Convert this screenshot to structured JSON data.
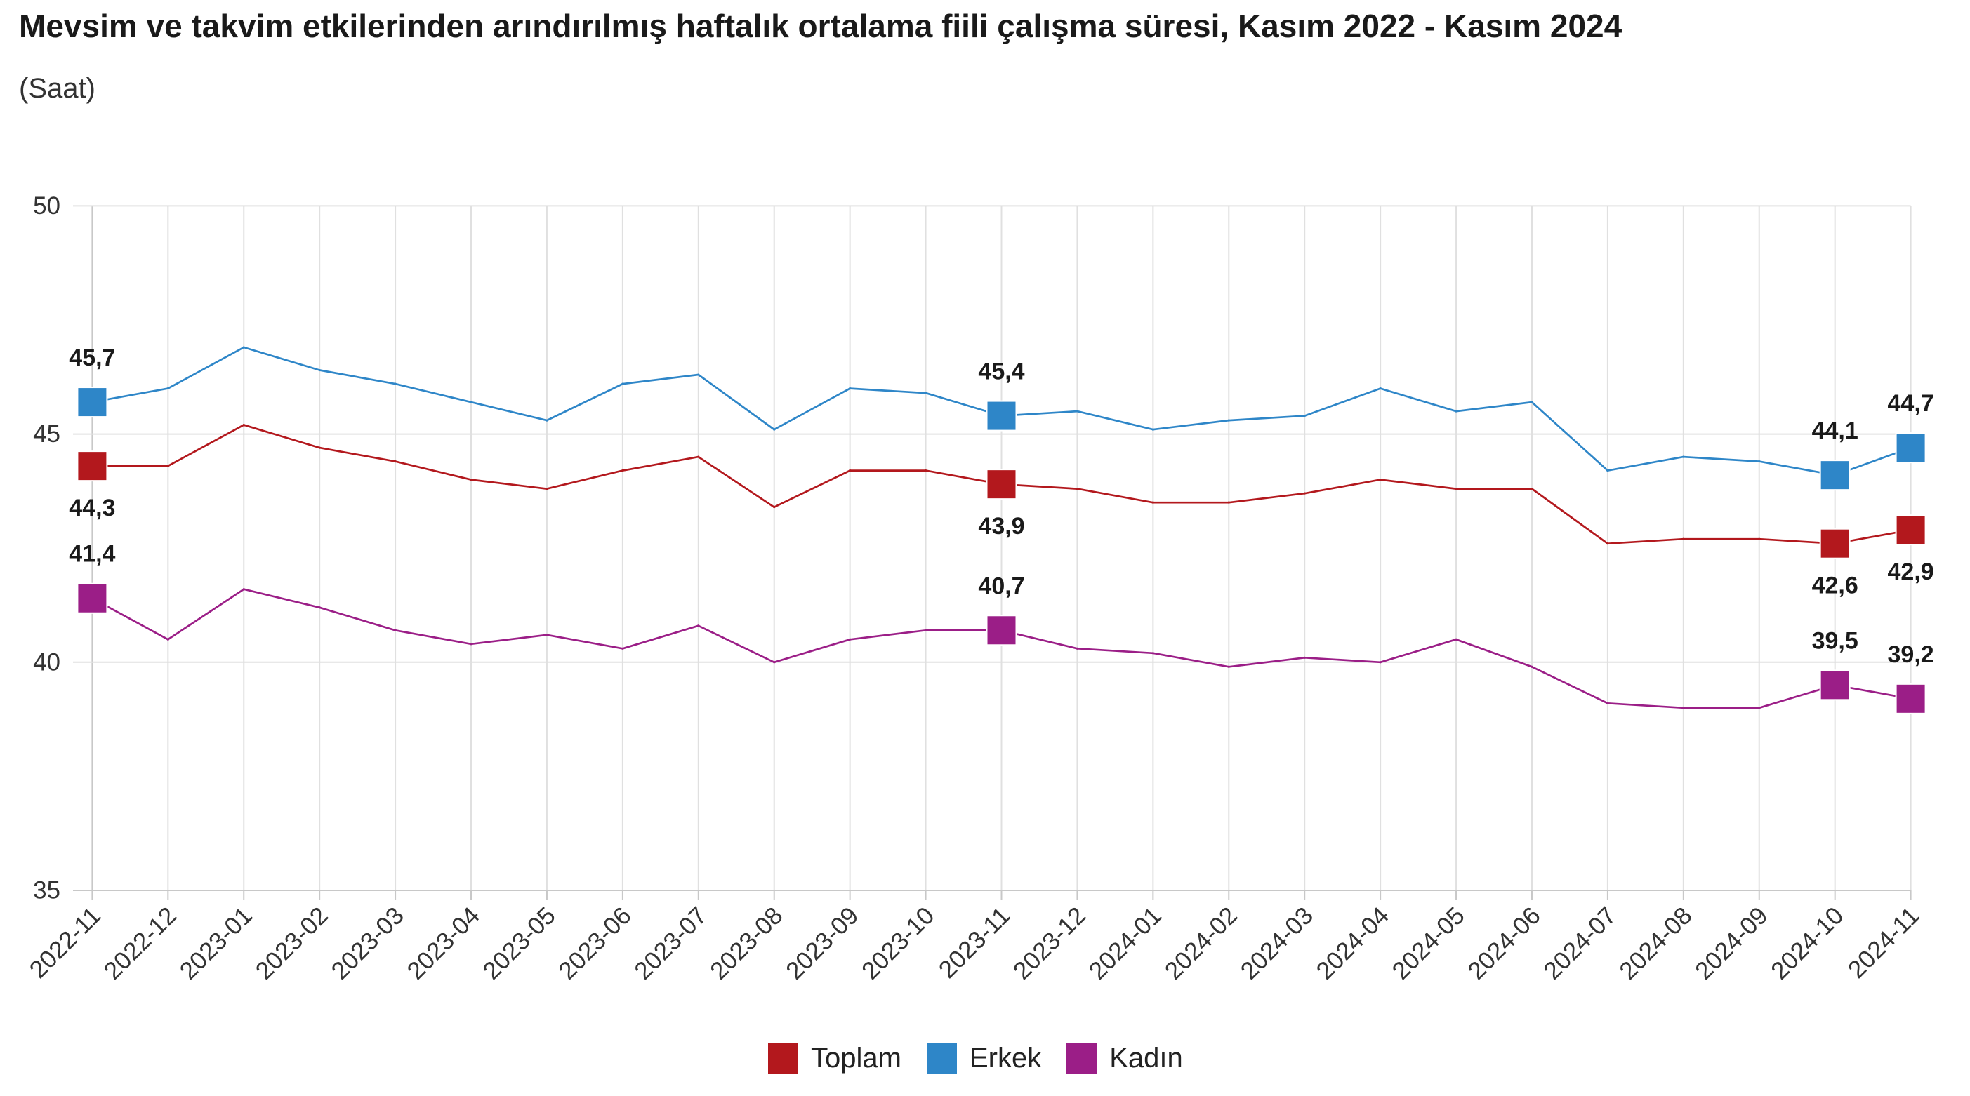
{
  "chart_data": {
    "type": "line",
    "title": "Mevsim ve takvim etkilerinden arındırılmış haftalık ortalama fiili çalışma süresi, Kasım 2022 - Kasım 2024",
    "subtitle": "(Saat)",
    "x": [
      "2022-11",
      "2022-12",
      "2023-01",
      "2023-02",
      "2023-03",
      "2023-04",
      "2023-05",
      "2023-06",
      "2023-07",
      "2023-08",
      "2023-09",
      "2023-10",
      "2023-11",
      "2023-12",
      "2024-01",
      "2024-02",
      "2024-03",
      "2024-04",
      "2024-05",
      "2024-06",
      "2024-07",
      "2024-08",
      "2024-09",
      "2024-10",
      "2024-11"
    ],
    "ylim": [
      35,
      50
    ],
    "yticks": [
      35,
      40,
      45,
      50
    ],
    "grid": true,
    "legend_position": "bottom",
    "labeled_x": [
      "2022-11",
      "2023-11",
      "2024-10",
      "2024-11"
    ],
    "series": [
      {
        "name": "Toplam",
        "color": "#B3181D",
        "label_position": "below",
        "values": [
          44.3,
          44.3,
          45.2,
          44.7,
          44.4,
          44.0,
          43.8,
          44.2,
          44.5,
          43.4,
          44.2,
          44.2,
          43.9,
          43.8,
          43.5,
          43.5,
          43.7,
          44.0,
          43.8,
          43.8,
          42.6,
          42.7,
          42.7,
          42.6,
          42.9
        ]
      },
      {
        "name": "Erkek",
        "color": "#2E86C8",
        "label_position": "above",
        "values": [
          45.7,
          46.0,
          46.9,
          46.4,
          46.1,
          45.7,
          45.3,
          46.1,
          46.3,
          45.1,
          46.0,
          45.9,
          45.4,
          45.5,
          45.1,
          45.3,
          45.4,
          46.0,
          45.5,
          45.7,
          44.2,
          44.5,
          44.4,
          44.1,
          44.7
        ]
      },
      {
        "name": "Kadın",
        "color": "#9B1E87",
        "label_position": "above",
        "values": [
          41.4,
          40.5,
          41.6,
          41.2,
          40.7,
          40.4,
          40.6,
          40.3,
          40.8,
          40.0,
          40.5,
          40.7,
          40.7,
          40.3,
          40.2,
          39.9,
          40.1,
          40.0,
          40.5,
          39.9,
          39.1,
          39.0,
          39.0,
          39.5,
          39.2
        ]
      }
    ]
  }
}
